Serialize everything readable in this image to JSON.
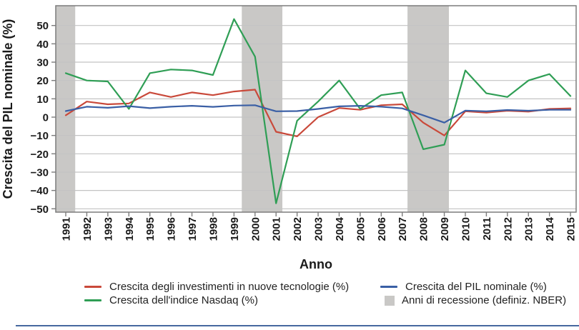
{
  "chart_data": {
    "type": "line",
    "title": "",
    "xlabel": "Anno",
    "ylabel": "Crescita del PIL nominale (%)",
    "x": [
      1991,
      1992,
      1993,
      1994,
      1995,
      1996,
      1997,
      1998,
      1999,
      2000,
      2001,
      2002,
      2003,
      2004,
      2005,
      2006,
      2007,
      2008,
      2009,
      2010,
      2011,
      2012,
      2013,
      2014,
      2015
    ],
    "xtick_labels": [
      "1991",
      "1992",
      "1993",
      "1994",
      "1995",
      "1996",
      "1997",
      "1998",
      "1999",
      "2000",
      "2001",
      "2002",
      "2003",
      "2004",
      "2005",
      "2006",
      "2007",
      "2008",
      "2009",
      "2010",
      "2011",
      "2012",
      "2013",
      "2014",
      "2015"
    ],
    "yticks": [
      50,
      40,
      30,
      20,
      10,
      0,
      -10,
      -20,
      -30,
      -40,
      -50
    ],
    "ytick_labels": [
      "50",
      "40",
      "30",
      "20",
      "10",
      "0",
      "−10",
      "−20",
      "−30",
      "−40",
      "−50"
    ],
    "ylim": [
      -52,
      61
    ],
    "grid": "horizontal",
    "legend_position": "bottom",
    "series": [
      {
        "name": "Crescita degli investimenti in nuove tecnologie (%)",
        "color": "#c9493a",
        "values": [
          1,
          8.5,
          7,
          7.5,
          13.5,
          11,
          13.5,
          12,
          14,
          15,
          -8,
          -10.5,
          0,
          5,
          4,
          6.5,
          7,
          -3,
          -10,
          3.2,
          2.5,
          3.5,
          3,
          4.5,
          4.8
        ]
      },
      {
        "name": "Crescita dell'indice Nasdaq (%)",
        "color": "#2f9e55",
        "values": [
          24,
          20,
          19.5,
          4.5,
          24,
          26,
          25.5,
          23,
          53.5,
          33,
          -47,
          -2,
          8.5,
          20,
          4.5,
          12,
          13.5,
          -17.5,
          -15,
          25.5,
          13,
          11,
          20,
          23.5,
          11.5
        ]
      },
      {
        "name": "Crescita del PIL nominale (%)",
        "color": "#3a5fa5",
        "values": [
          3.3,
          5.7,
          5.1,
          6,
          4.9,
          5.7,
          6.2,
          5.6,
          6.3,
          6.5,
          3.2,
          3.3,
          4.5,
          5.9,
          6.2,
          5.7,
          4.8,
          1,
          -3,
          3.6,
          3.2,
          3.9,
          3.5,
          4,
          4
        ]
      }
    ],
    "recession_bands": {
      "label": "Anni di recessione (definiz. NBER)",
      "color": "#c9c8c6",
      "year_ranges": [
        [
          1990.52,
          1991.45
        ],
        [
          1999.37,
          2001.3
        ],
        [
          2007.25,
          2009.22
        ]
      ]
    }
  },
  "figure_style": {
    "gridline_color": "#c3c3c3",
    "axis_color": "#7c7c7c",
    "text_color": "#1a1a1a",
    "bottom_rule_color": "#46689f"
  }
}
